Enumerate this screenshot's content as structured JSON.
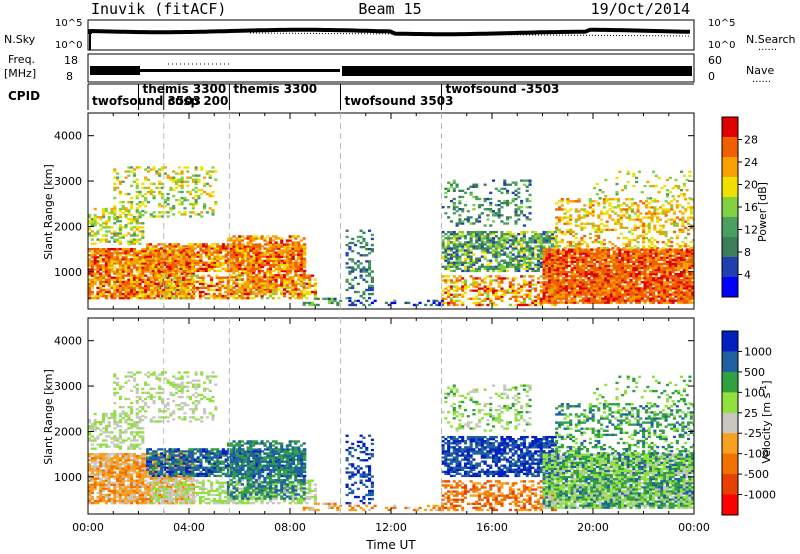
{
  "header": {
    "station": "Inuvik (fitACF)",
    "beam": "Beam 15",
    "date": "19/Oct/2014"
  },
  "strip_labels": {
    "nsky": "N.Sky",
    "nsky_top": "10^5",
    "nsky_bottom": "10^0",
    "nsearch": "N.Search",
    "nsearch_top": "10^5",
    "nsearch_bottom": "10^0",
    "freq": "Freq.",
    "freq_unit": "[MHz]",
    "freq_top": "18",
    "freq_bottom": "8",
    "nave": "Nave",
    "nave_top": "60",
    "nave_bottom": "0",
    "cpid": "CPID",
    "dotted": "......"
  },
  "cpid_segments": [
    {
      "label": "twofsound 3503",
      "start_hr": 0.0
    },
    {
      "label": "themis 3300",
      "start_hr": 2.0
    },
    {
      "label": "cusp 200",
      "start_hr": 3.0
    },
    {
      "label": "themis 3300",
      "start_hr": 5.6
    },
    {
      "label": "twofsound 3503",
      "start_hr": 10.0
    },
    {
      "label": "twofsound -3503",
      "start_hr": 14.0
    }
  ],
  "colors": {
    "power_scale": [
      "#0000ff",
      "#2040b0",
      "#3a7e5a",
      "#4aa060",
      "#80d040",
      "#f0e000",
      "#f8a000",
      "#f06000",
      "#e00000"
    ],
    "velocity_scale": [
      "#ff0000",
      "#e84000",
      "#f07000",
      "#f8a020",
      "#c8c8c0",
      "#90e040",
      "#30a040",
      "#2060a0",
      "#0020c0"
    ]
  },
  "chart_data": [
    {
      "type": "heatmap",
      "name_hint": "power",
      "ylabel": "Slant Range [km]",
      "xlabel": "",
      "x_ticks": [
        "00:00",
        "04:00",
        "08:00",
        "12:00",
        "16:00",
        "20:00",
        "00:00"
      ],
      "xlim_hours": [
        0,
        24
      ],
      "y_ticks": [
        "1000",
        "2000",
        "3000",
        "4000"
      ],
      "ylim": [
        180,
        4500
      ],
      "colorbar_label": "Power [dB]",
      "colorbar_ticks": [
        "4",
        "8",
        "12",
        "16",
        "20",
        "24",
        "28"
      ],
      "colorbar_range": [
        0,
        32
      ],
      "grid": false
    },
    {
      "type": "heatmap",
      "name_hint": "velocity",
      "ylabel": "Slant Range [km]",
      "xlabel": "Time UT",
      "x_ticks": [
        "00:00",
        "04:00",
        "08:00",
        "12:00",
        "16:00",
        "20:00",
        "00:00"
      ],
      "xlim_hours": [
        0,
        24
      ],
      "y_ticks": [
        "1000",
        "2000",
        "3000",
        "4000"
      ],
      "ylim": [
        180,
        4500
      ],
      "colorbar_label": "Velocity [m s^-1]",
      "colorbar_ticks": [
        "1000",
        "500",
        "100",
        "25",
        "-25",
        "-100",
        "-500",
        "-1000"
      ],
      "grid": false
    }
  ]
}
